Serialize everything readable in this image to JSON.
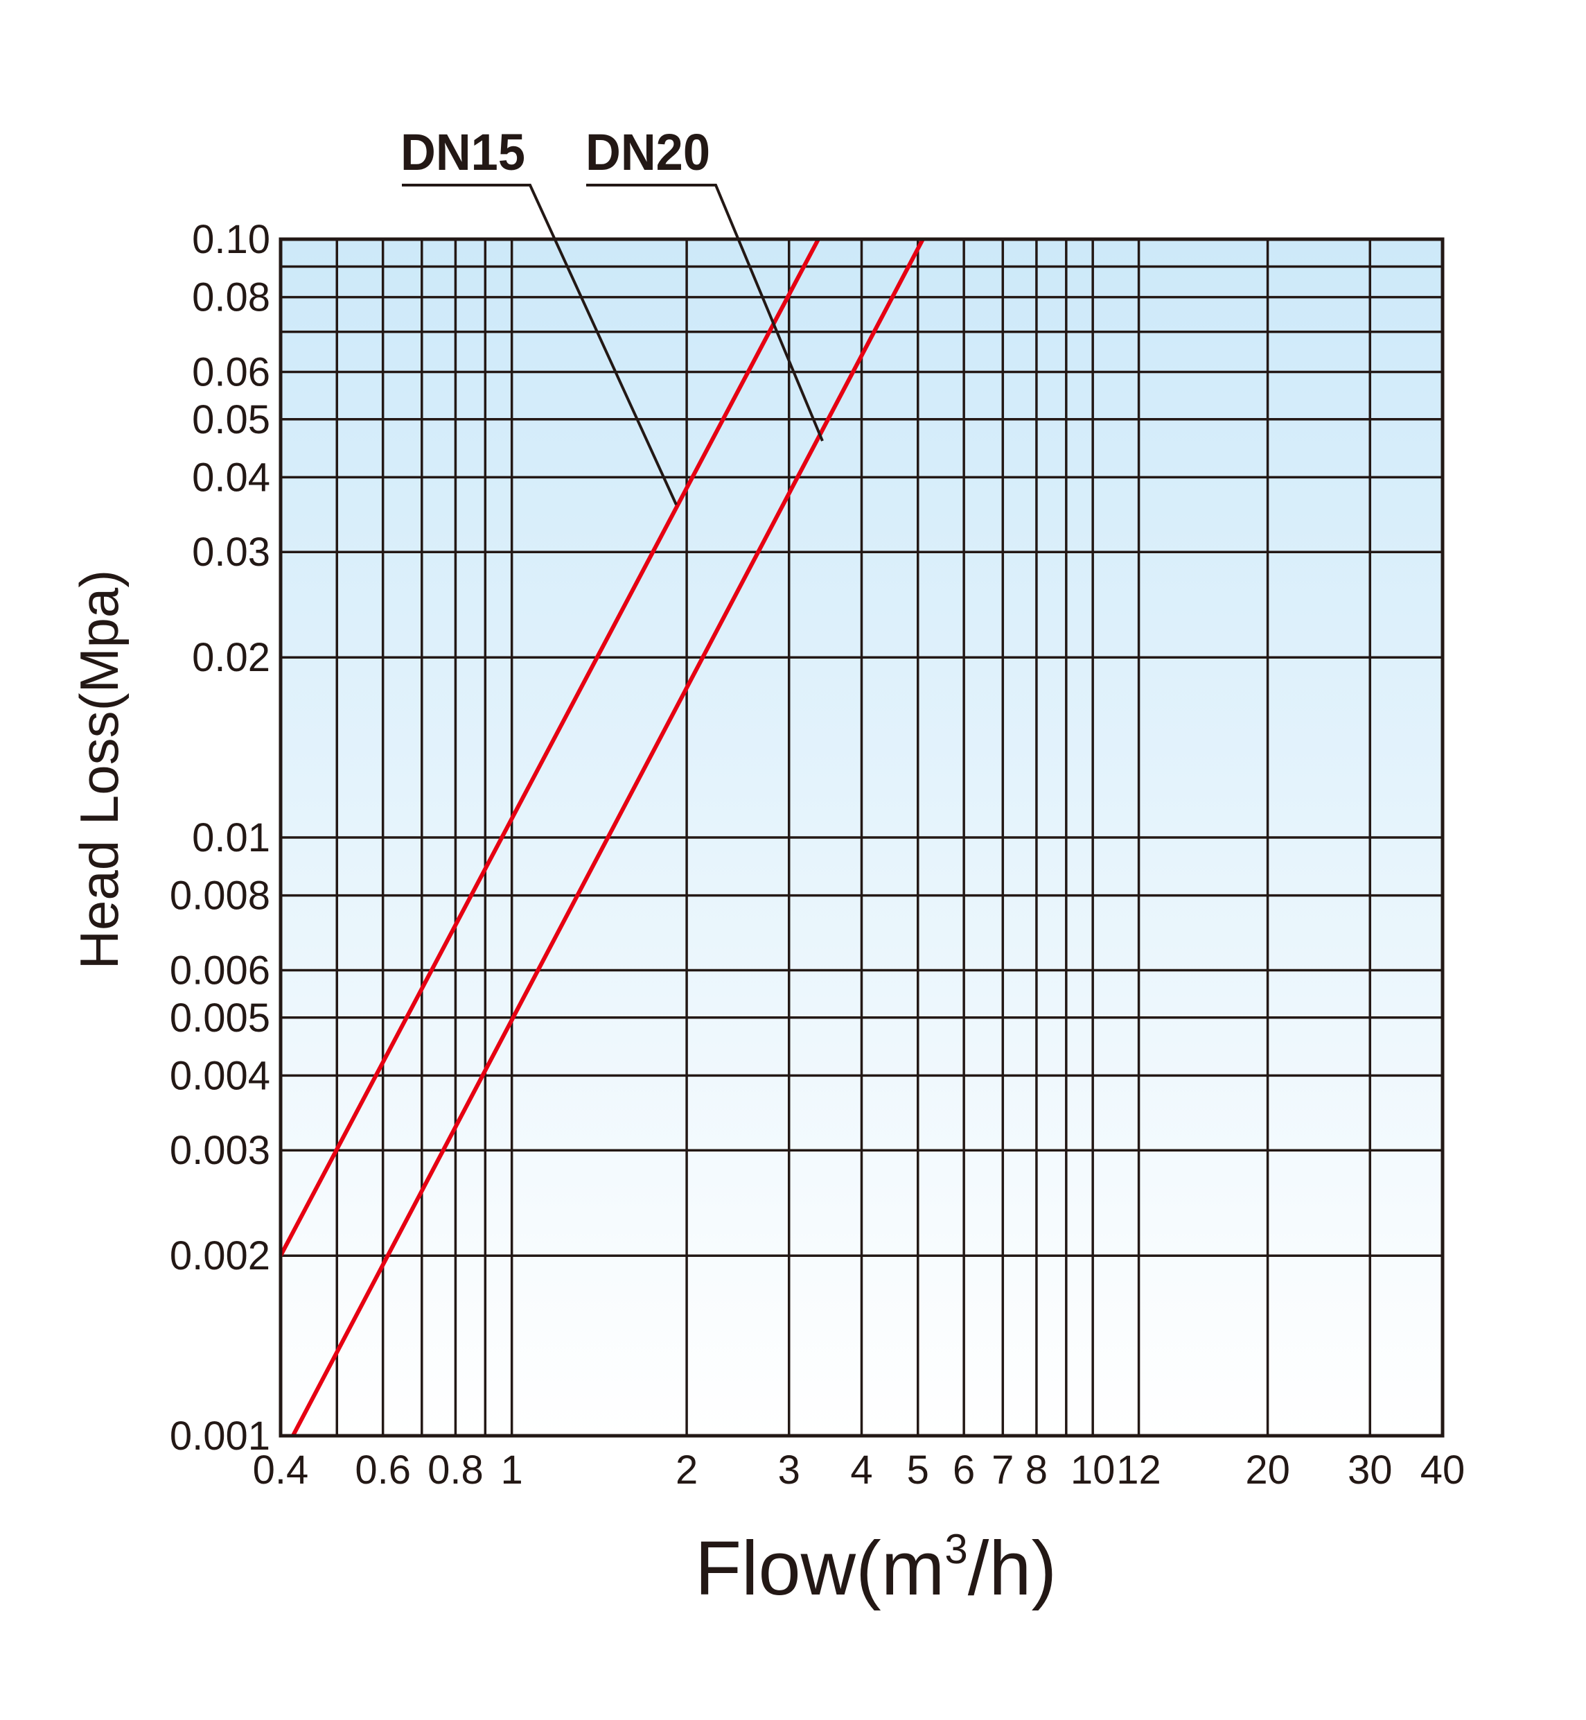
{
  "chart_data": {
    "type": "line",
    "title": "",
    "xlabel": "Flow(m³/h)",
    "xlabel_parts": {
      "main": "Flow(m",
      "sup": "3",
      "tail": "/h)"
    },
    "ylabel": "Head Loss(Mpa)",
    "xscale": "log",
    "yscale": "log",
    "xlim": [
      0.4,
      40
    ],
    "ylim": [
      0.001,
      0.1
    ],
    "grid": true,
    "x_gridlines": [
      0.4,
      0.5,
      0.6,
      0.7,
      0.8,
      0.9,
      1,
      2,
      3,
      4,
      5,
      6,
      7,
      8,
      9,
      10,
      12,
      20,
      30,
      40
    ],
    "y_gridlines": [
      0.1,
      0.09,
      0.08,
      0.07,
      0.06,
      0.05,
      0.04,
      0.03,
      0.02,
      0.01,
      0.008,
      0.006,
      0.005,
      0.004,
      0.003,
      0.002,
      0.001
    ],
    "x_ticks": [
      {
        "value": 0.4,
        "label": "0.4"
      },
      {
        "value": 0.6,
        "label": "0.6"
      },
      {
        "value": 0.8,
        "label": "0.8"
      },
      {
        "value": 1,
        "label": "1"
      },
      {
        "value": 2,
        "label": "2"
      },
      {
        "value": 3,
        "label": "3"
      },
      {
        "value": 4,
        "label": "4"
      },
      {
        "value": 5,
        "label": "5"
      },
      {
        "value": 6,
        "label": "6"
      },
      {
        "value": 7,
        "label": "7"
      },
      {
        "value": 8,
        "label": "8"
      },
      {
        "value": 10,
        "label": "10"
      },
      {
        "value": 12,
        "label": "12"
      },
      {
        "value": 20,
        "label": "20"
      },
      {
        "value": 30,
        "label": "30"
      },
      {
        "value": 40,
        "label": "40"
      }
    ],
    "y_ticks": [
      {
        "value": 0.1,
        "label": "0.10"
      },
      {
        "value": 0.08,
        "label": "0.08"
      },
      {
        "value": 0.06,
        "label": "0.06"
      },
      {
        "value": 0.05,
        "label": "0.05"
      },
      {
        "value": 0.04,
        "label": "0.04"
      },
      {
        "value": 0.03,
        "label": "0.03"
      },
      {
        "value": 0.02,
        "label": "0.02"
      },
      {
        "value": 0.01,
        "label": "0.01"
      },
      {
        "value": 0.008,
        "label": "0.008"
      },
      {
        "value": 0.006,
        "label": "0.006"
      },
      {
        "value": 0.005,
        "label": "0.005"
      },
      {
        "value": 0.004,
        "label": "0.004"
      },
      {
        "value": 0.003,
        "label": "0.003"
      },
      {
        "value": 0.002,
        "label": "0.002"
      },
      {
        "value": 0.001,
        "label": "0.001"
      }
    ],
    "series": [
      {
        "name": "DN15",
        "color": "#e60012",
        "points": [
          [
            0.4,
            0.002
          ],
          [
            3.37,
            0.1
          ]
        ]
      },
      {
        "name": "DN20",
        "color": "#e60012",
        "points": [
          [
            0.42,
            0.001
          ],
          [
            5.1,
            0.1
          ]
        ]
      }
    ],
    "background_gradient": [
      "#cde9f9",
      "#ffffff"
    ]
  }
}
